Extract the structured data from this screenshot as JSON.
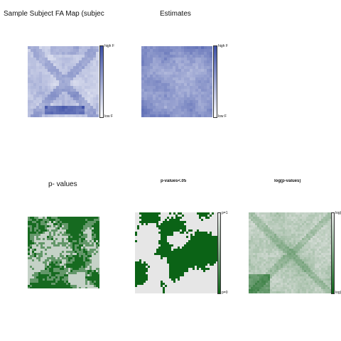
{
  "panels": {
    "fa_map": {
      "title": "Sample Subject FA Map (subjec",
      "colorbar": {
        "high_label": "high F",
        "low_label": "low F",
        "top_color": "#3c4fa6",
        "bottom_color": "#ffffff"
      }
    },
    "estimates": {
      "title": "Estimates",
      "colorbar": {
        "high_label": "high F",
        "low_label": "low F",
        "top_color": "#3c4fa6",
        "bottom_color": "#ffffff"
      }
    },
    "pvalues": {
      "title": "p- values"
    },
    "pvalues_thresh": {
      "title": "p-values<.05",
      "colorbar": {
        "high_label": "p=1",
        "low_label": "p=0",
        "top_color": "#e6e6e6",
        "bottom_color": "#0b6316"
      }
    },
    "log_pvalues": {
      "title": "log(p-values)",
      "colorbar": {
        "high_label": "log(",
        "low_label": "log(",
        "top_color": "#e6e6e6",
        "bottom_color": "#0b6316"
      }
    }
  },
  "colors": {
    "blue_high": "#3c4fa6",
    "blue_low": "#ffffff",
    "green_dark": "#0b6316",
    "gray_light": "#e6e6e6"
  }
}
